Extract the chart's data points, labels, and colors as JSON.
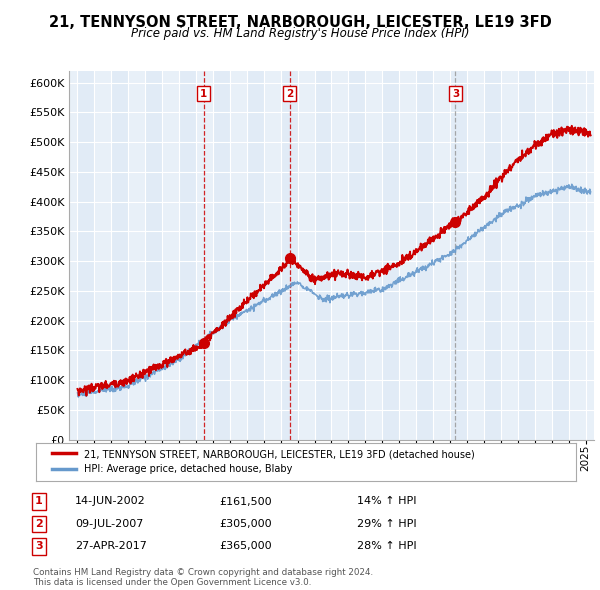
{
  "title": "21, TENNYSON STREET, NARBOROUGH, LEICESTER, LE19 3FD",
  "subtitle": "Price paid vs. HM Land Registry's House Price Index (HPI)",
  "ylabel_values": [
    0,
    50000,
    100000,
    150000,
    200000,
    250000,
    300000,
    350000,
    400000,
    450000,
    500000,
    550000,
    600000
  ],
  "ylim": [
    0,
    620000
  ],
  "xlim_start": 1994.5,
  "xlim_end": 2025.5,
  "sale_dates": [
    2002.45,
    2007.53,
    2017.32
  ],
  "sale_prices": [
    161500,
    305000,
    365000
  ],
  "sale_labels": [
    "1",
    "2",
    "3"
  ],
  "vline3_gray": true,
  "legend_line1": "21, TENNYSON STREET, NARBOROUGH, LEICESTER, LE19 3FD (detached house)",
  "legend_line2": "HPI: Average price, detached house, Blaby",
  "table_rows": [
    [
      "1",
      "14-JUN-2002",
      "£161,500",
      "14% ↑ HPI"
    ],
    [
      "2",
      "09-JUL-2007",
      "£305,000",
      "29% ↑ HPI"
    ],
    [
      "3",
      "27-APR-2017",
      "£365,000",
      "28% ↑ HPI"
    ]
  ],
  "footer": "Contains HM Land Registry data © Crown copyright and database right 2024.\nThis data is licensed under the Open Government Licence v3.0.",
  "line_color_red": "#cc0000",
  "line_color_blue": "#6699cc",
  "bg_color": "#ffffff",
  "chart_bg_color": "#e8f0f8",
  "grid_color": "#ffffff",
  "vline_color_red": "#cc0000",
  "vline_color_gray": "#999999",
  "box_color": "#cc0000",
  "col_shade_color": "#ddeeff"
}
